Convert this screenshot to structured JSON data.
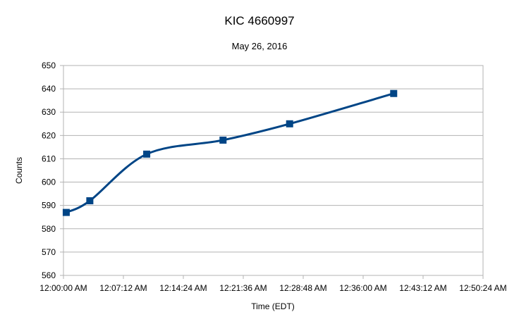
{
  "chart_data": {
    "type": "line",
    "title": "KIC 4660997",
    "subtitle": "May 26, 2016",
    "xlabel": "Time (EDT)",
    "ylabel": "Counts",
    "x_ticks": [
      "12:00:00 AM",
      "12:07:12 AM",
      "12:14:24 AM",
      "12:21:36 AM",
      "12:28:48 AM",
      "12:36:00 AM",
      "12:43:12 AM",
      "12:50:24 AM"
    ],
    "xlim": [
      "12:00:00 AM",
      "12:50:24 AM"
    ],
    "ylim": [
      560,
      650
    ],
    "y_ticks": [
      560,
      570,
      580,
      590,
      600,
      610,
      620,
      630,
      640,
      650
    ],
    "grid": "horizontal",
    "smoothed": true,
    "marker": "square",
    "series": [
      {
        "color": "#004586",
        "points": [
          {
            "x": "12:00:20 AM",
            "y": 587
          },
          {
            "x": "12:03:10 AM",
            "y": 592
          },
          {
            "x": "12:10:00 AM",
            "y": 612
          },
          {
            "x": "12:19:10 AM",
            "y": 618
          },
          {
            "x": "12:27:10 AM",
            "y": 625
          },
          {
            "x": "12:39:40 AM",
            "y": 638
          }
        ]
      }
    ]
  }
}
